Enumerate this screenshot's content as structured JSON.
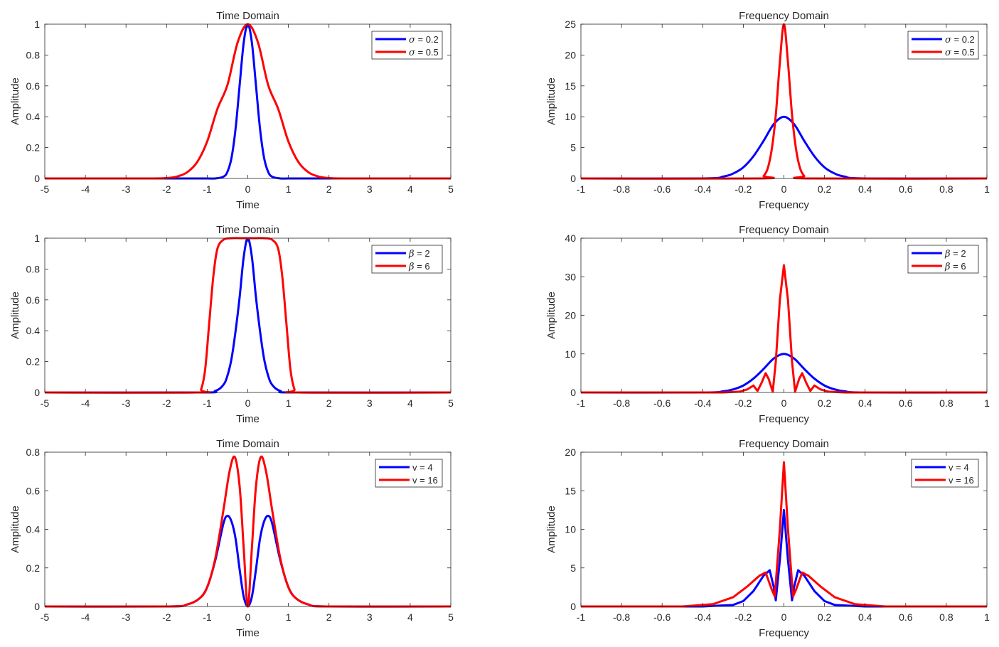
{
  "figure": {
    "background": "#ffffff",
    "axis_color": "#262626",
    "line_width": 3
  },
  "chart_data": [
    {
      "type": "line",
      "title": "Time Domain",
      "xlabel": "Time",
      "ylabel": "Amplitude",
      "xlim": [
        -5,
        5
      ],
      "ylim": [
        0,
        1
      ],
      "xticks": [
        -5,
        -4,
        -3,
        -2,
        -1,
        0,
        1,
        2,
        3,
        4,
        5
      ],
      "yticks": [
        0,
        0.2,
        0.4,
        0.6,
        0.8,
        1
      ],
      "xtick_labels": [
        "-5",
        "-4",
        "-3",
        "-2",
        "-1",
        "0",
        "1",
        "2",
        "3",
        "4",
        "5"
      ],
      "ytick_labels": [
        "0",
        "0.2",
        "0.4",
        "0.6",
        "0.8",
        "1"
      ],
      "legend_position": "top-right",
      "series": [
        {
          "name_symbol": "σ",
          "name_text": " = 0.2",
          "color": "#0000ff",
          "x": [
            -5,
            -2,
            -1.5,
            -1,
            -0.8,
            -0.6,
            -0.5,
            -0.4,
            -0.3,
            -0.2,
            -0.1,
            0,
            0.1,
            0.2,
            0.3,
            0.4,
            0.5,
            0.6,
            0.8,
            1,
            1.5,
            2,
            5
          ],
          "y": [
            0,
            0,
            0,
            0,
            0,
            0.011,
            0.044,
            0.135,
            0.325,
            0.607,
            0.882,
            1,
            0.882,
            0.607,
            0.325,
            0.135,
            0.044,
            0.011,
            0,
            0,
            0,
            0,
            0
          ]
        },
        {
          "name_symbol": "σ",
          "name_text": " = 0.5",
          "color": "#ff0000",
          "x": [
            -5,
            -2.5,
            -2,
            -1.75,
            -1.5,
            -1.25,
            -1,
            -0.75,
            -0.5,
            -0.25,
            0,
            0.25,
            0.5,
            0.75,
            1,
            1.25,
            1.5,
            1.75,
            2,
            2.5,
            5
          ],
          "y": [
            0,
            0,
            0.003,
            0.012,
            0.039,
            0.105,
            0.24,
            0.45,
            0.607,
            0.882,
            1,
            0.882,
            0.607,
            0.45,
            0.24,
            0.105,
            0.039,
            0.012,
            0.003,
            0,
            0
          ]
        }
      ]
    },
    {
      "type": "line",
      "title": "Frequency Domain",
      "xlabel": "Frequency",
      "ylabel": "Amplitude",
      "xlim": [
        -1,
        1
      ],
      "ylim": [
        0,
        25
      ],
      "xticks": [
        -1,
        -0.8,
        -0.6,
        -0.4,
        -0.2,
        0,
        0.2,
        0.4,
        0.6,
        0.8,
        1
      ],
      "yticks": [
        0,
        5,
        10,
        15,
        20,
        25
      ],
      "xtick_labels": [
        "-1",
        "-0.8",
        "-0.6",
        "-0.4",
        "-0.2",
        "0",
        "0.2",
        "0.4",
        "0.6",
        "0.8",
        "1"
      ],
      "ytick_labels": [
        "0",
        "5",
        "10",
        "15",
        "20",
        "25"
      ],
      "legend_position": "top-right",
      "series": [
        {
          "name_symbol": "σ",
          "name_text": " = 0.2",
          "color": "#0000ff",
          "x": [
            -1,
            -0.4,
            -0.3,
            -0.25,
            -0.2,
            -0.15,
            -0.1,
            -0.05,
            0,
            0.05,
            0.1,
            0.15,
            0.2,
            0.25,
            0.3,
            0.4,
            1
          ],
          "y": [
            0,
            0,
            0.3,
            0.8,
            1.8,
            3.6,
            6.1,
            8.8,
            10,
            8.8,
            6.1,
            3.6,
            1.8,
            0.8,
            0.3,
            0,
            0
          ]
        },
        {
          "name_symbol": "σ",
          "name_text": " = 0.5",
          "color": "#ff0000",
          "x": [
            -1,
            -0.12,
            -0.1,
            -0.08,
            -0.06,
            -0.04,
            -0.02,
            0,
            0.02,
            0.04,
            0.06,
            0.08,
            0.1,
            0.12,
            1
          ],
          "y": [
            0,
            0,
            0.4,
            1.6,
            4.7,
            10.3,
            18.8,
            25,
            18.8,
            10.3,
            4.7,
            1.6,
            0.4,
            0,
            0
          ]
        }
      ]
    },
    {
      "type": "line",
      "title": "Time Domain",
      "xlabel": "Time",
      "ylabel": "Amplitude",
      "xlim": [
        -5,
        5
      ],
      "ylim": [
        0,
        1
      ],
      "xticks": [
        -5,
        -4,
        -3,
        -2,
        -1,
        0,
        1,
        2,
        3,
        4,
        5
      ],
      "yticks": [
        0,
        0.2,
        0.4,
        0.6,
        0.8,
        1
      ],
      "xtick_labels": [
        "-5",
        "-4",
        "-3",
        "-2",
        "-1",
        "0",
        "1",
        "2",
        "3",
        "4",
        "5"
      ],
      "ytick_labels": [
        "0",
        "0.2",
        "0.4",
        "0.6",
        "0.8",
        "1"
      ],
      "legend_position": "top-right",
      "series": [
        {
          "name_symbol": "β",
          "name_text": " = 2",
          "color": "#0000ff",
          "x": [
            -5,
            -1.2,
            -0.8,
            -0.6,
            -0.5,
            -0.4,
            -0.3,
            -0.2,
            -0.1,
            0,
            0.1,
            0.2,
            0.3,
            0.4,
            0.5,
            0.6,
            0.8,
            1.2,
            5
          ],
          "y": [
            0,
            0,
            0.01,
            0.05,
            0.11,
            0.22,
            0.4,
            0.62,
            0.88,
            1,
            0.88,
            0.62,
            0.4,
            0.22,
            0.11,
            0.05,
            0.01,
            0,
            0
          ],
          "smooth": true
        },
        {
          "name_symbol": "β",
          "name_text": " = 6",
          "color": "#ff0000",
          "x": [
            -5,
            -1.25,
            -1.15,
            -1.05,
            -0.95,
            -0.85,
            -0.75,
            -0.6,
            -0.4,
            -0.2,
            0,
            0.2,
            0.4,
            0.6,
            0.75,
            0.85,
            0.95,
            1.05,
            1.15,
            1.25,
            5
          ],
          "y": [
            0,
            0,
            0.02,
            0.15,
            0.45,
            0.75,
            0.93,
            0.99,
            1,
            1,
            1,
            1,
            1,
            0.99,
            0.93,
            0.75,
            0.45,
            0.15,
            0.02,
            0,
            0
          ],
          "smooth": true
        }
      ]
    },
    {
      "type": "line",
      "title": "Frequency Domain",
      "xlabel": "Frequency",
      "ylabel": "Amplitude",
      "xlim": [
        -1,
        1
      ],
      "ylim": [
        0,
        40
      ],
      "xticks": [
        -1,
        -0.8,
        -0.6,
        -0.4,
        -0.2,
        0,
        0.2,
        0.4,
        0.6,
        0.8,
        1
      ],
      "yticks": [
        0,
        10,
        20,
        30,
        40
      ],
      "xtick_labels": [
        "-1",
        "-0.8",
        "-0.6",
        "-0.4",
        "-0.2",
        "0",
        "0.2",
        "0.4",
        "0.6",
        "0.8",
        "1"
      ],
      "ytick_labels": [
        "0",
        "10",
        "20",
        "30",
        "40"
      ],
      "legend_position": "top-right",
      "series": [
        {
          "name_symbol": "β",
          "name_text": " = 2",
          "color": "#0000ff",
          "x": [
            -1,
            -0.4,
            -0.3,
            -0.25,
            -0.2,
            -0.15,
            -0.1,
            -0.05,
            0,
            0.05,
            0.1,
            0.15,
            0.2,
            0.25,
            0.3,
            0.4,
            1
          ],
          "y": [
            0,
            0,
            0.3,
            0.8,
            1.8,
            3.6,
            6.1,
            8.8,
            10,
            8.8,
            6.1,
            3.6,
            1.8,
            0.8,
            0.3,
            0,
            0
          ],
          "smooth": true
        },
        {
          "name_symbol": "β",
          "name_text": " = 6",
          "color": "#ff0000",
          "x": [
            -1,
            -0.3,
            -0.22,
            -0.18,
            -0.15,
            -0.13,
            -0.11,
            -0.09,
            -0.075,
            -0.055,
            -0.04,
            -0.02,
            0,
            0.02,
            0.04,
            0.055,
            0.075,
            0.09,
            0.11,
            0.13,
            0.15,
            0.18,
            0.22,
            0.3,
            1
          ],
          "y": [
            0,
            0,
            0.2,
            0.8,
            1.8,
            0.4,
            2.5,
            5,
            3.5,
            0.2,
            8,
            24,
            33,
            24,
            8,
            0.2,
            3.5,
            5,
            2.5,
            0.4,
            1.8,
            0.8,
            0.2,
            0,
            0
          ],
          "smooth": false
        }
      ]
    },
    {
      "type": "line",
      "title": "Time Domain",
      "xlabel": "Time",
      "ylabel": "Amplitude",
      "xlim": [
        -5,
        5
      ],
      "ylim": [
        0,
        0.8
      ],
      "xticks": [
        -5,
        -4,
        -3,
        -2,
        -1,
        0,
        1,
        2,
        3,
        4,
        5
      ],
      "yticks": [
        0,
        0.2,
        0.4,
        0.6,
        0.8
      ],
      "xtick_labels": [
        "-5",
        "-4",
        "-3",
        "-2",
        "-1",
        "0",
        "1",
        "2",
        "3",
        "4",
        "5"
      ],
      "ytick_labels": [
        "0",
        "0.2",
        "0.4",
        "0.6",
        "0.8"
      ],
      "legend_position": "top-right",
      "series": [
        {
          "name_symbol": "",
          "name_text": "v = 4",
          "color": "#0000ff",
          "x": [
            -5,
            -2,
            -1.5,
            -1.2,
            -1,
            -0.8,
            -0.6,
            -0.5,
            -0.4,
            -0.3,
            -0.2,
            -0.1,
            0,
            0.1,
            0.2,
            0.3,
            0.4,
            0.5,
            0.6,
            0.8,
            1,
            1.2,
            1.5,
            2,
            5
          ],
          "y": [
            0,
            0,
            0.01,
            0.04,
            0.1,
            0.24,
            0.43,
            0.47,
            0.44,
            0.35,
            0.19,
            0.05,
            0,
            0.05,
            0.19,
            0.35,
            0.44,
            0.47,
            0.43,
            0.24,
            0.1,
            0.04,
            0.01,
            0,
            0
          ],
          "smooth": true
        },
        {
          "name_symbol": "",
          "name_text": "v = 16",
          "color": "#ff0000",
          "x": [
            -5,
            -2,
            -1.5,
            -1.2,
            -1,
            -0.8,
            -0.6,
            -0.45,
            -0.32,
            -0.2,
            -0.1,
            0,
            0.1,
            0.2,
            0.32,
            0.45,
            0.6,
            0.8,
            1,
            1.2,
            1.5,
            2,
            5
          ],
          "y": [
            0,
            0,
            0.01,
            0.04,
            0.1,
            0.25,
            0.5,
            0.7,
            0.775,
            0.62,
            0.3,
            0,
            0.3,
            0.62,
            0.775,
            0.7,
            0.5,
            0.25,
            0.1,
            0.04,
            0.01,
            0,
            0
          ],
          "smooth": true
        }
      ]
    },
    {
      "type": "line",
      "title": "Frequency Domain",
      "xlabel": "Frequency",
      "ylabel": "Amplitude",
      "xlim": [
        -1,
        1
      ],
      "ylim": [
        0,
        20
      ],
      "xticks": [
        -1,
        -0.8,
        -0.6,
        -0.4,
        -0.2,
        0,
        0.2,
        0.4,
        0.6,
        0.8,
        1
      ],
      "yticks": [
        0,
        5,
        10,
        15,
        20
      ],
      "xtick_labels": [
        "-1",
        "-0.8",
        "-0.6",
        "-0.4",
        "-0.2",
        "0",
        "0.2",
        "0.4",
        "0.6",
        "0.8",
        "1"
      ],
      "ytick_labels": [
        "0",
        "5",
        "10",
        "15",
        "20"
      ],
      "legend_position": "top-right",
      "series": [
        {
          "name_symbol": "",
          "name_text": "v = 4",
          "color": "#0000ff",
          "x": [
            -1,
            -0.4,
            -0.25,
            -0.2,
            -0.15,
            -0.1,
            -0.07,
            -0.05,
            -0.04,
            -0.02,
            0,
            0.02,
            0.04,
            0.05,
            0.07,
            0.1,
            0.15,
            0.2,
            0.25,
            0.4,
            1
          ],
          "y": [
            0,
            0,
            0.2,
            0.7,
            2,
            4,
            4.7,
            2.5,
            0.8,
            6,
            12.5,
            6,
            0.8,
            2.5,
            4.7,
            4,
            2,
            0.7,
            0.2,
            0,
            0
          ],
          "smooth": false
        },
        {
          "name_symbol": "",
          "name_text": "v = 16",
          "color": "#ff0000",
          "x": [
            -1,
            -0.5,
            -0.35,
            -0.25,
            -0.18,
            -0.12,
            -0.09,
            -0.06,
            -0.045,
            -0.02,
            0,
            0.02,
            0.045,
            0.06,
            0.09,
            0.12,
            0.18,
            0.25,
            0.35,
            0.5,
            1
          ],
          "y": [
            0,
            0,
            0.3,
            1.2,
            2.6,
            4,
            4.4,
            2.2,
            1.3,
            10,
            18.7,
            10,
            1.3,
            2.2,
            4.4,
            4,
            2.6,
            1.2,
            0.3,
            0,
            0
          ],
          "smooth": false
        }
      ]
    }
  ]
}
